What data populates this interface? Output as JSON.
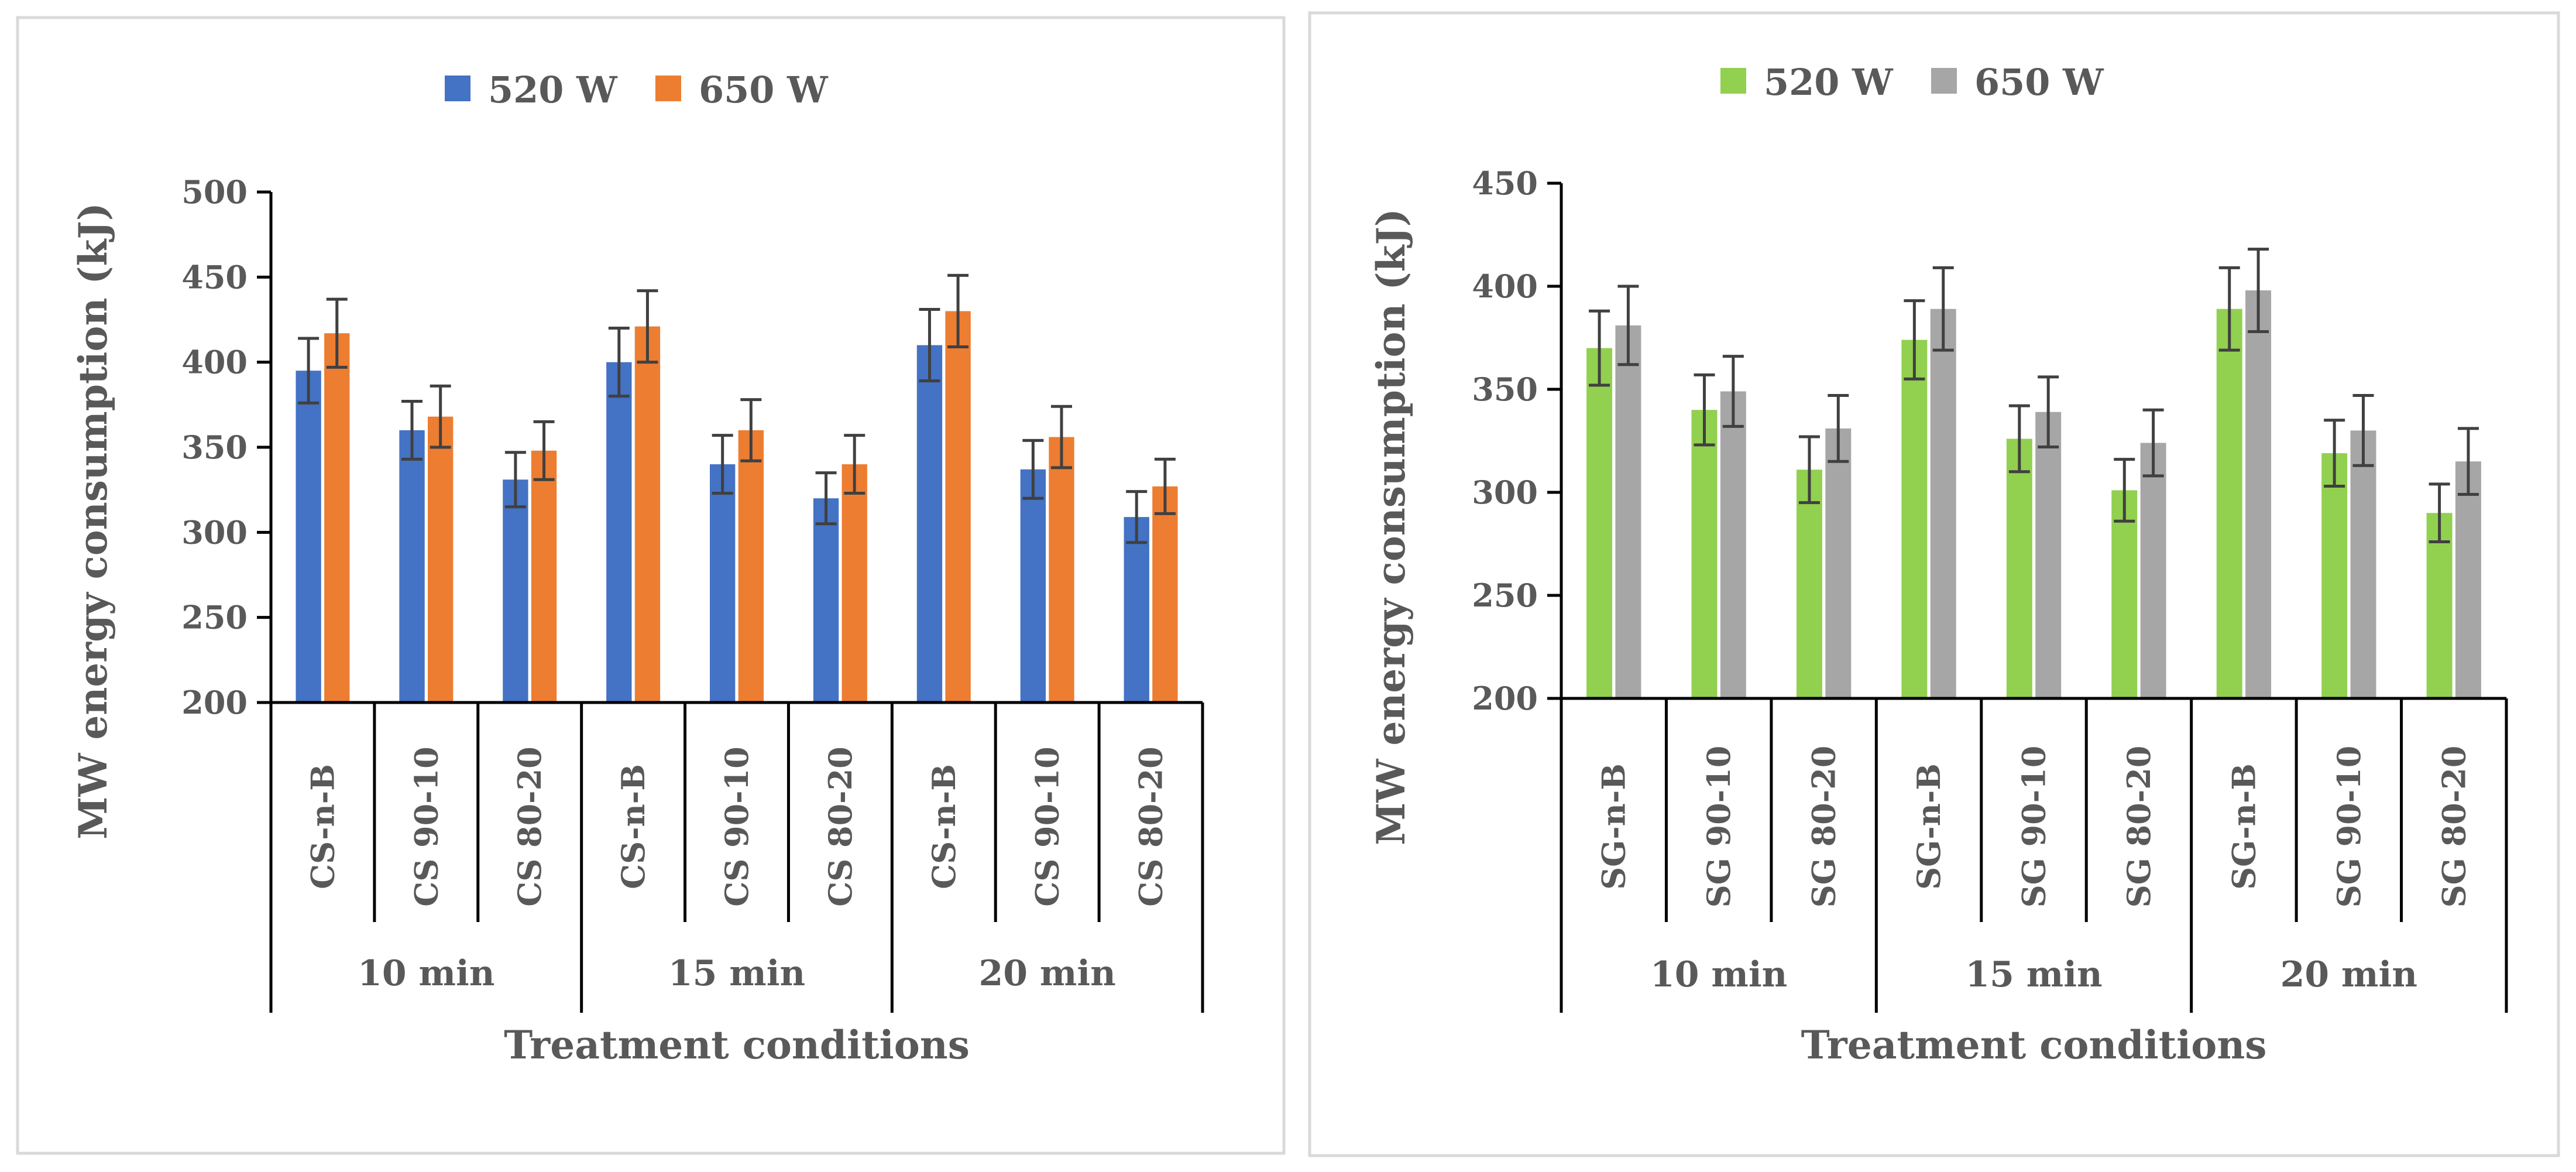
{
  "colors": {
    "panel_border": "#d9d9d9",
    "axis": "#000000",
    "text": "#595959",
    "error_bar": "#404040"
  },
  "chart_data": [
    {
      "type": "bar",
      "title": "",
      "xlabel": "Treatment conditions",
      "ylabel": "MW energy consumption (kJ)",
      "ylim": [
        200,
        500
      ],
      "ytick_step": 50,
      "yticks": [
        "200",
        "250",
        "300",
        "350",
        "400",
        "450",
        "500"
      ],
      "grid": false,
      "legend_position": "top-center",
      "categories": [
        "CS-n-B",
        "CS 90-10",
        "CS 80-20",
        "CS-n-B",
        "CS 90-10",
        "CS 80-20",
        "CS-n-B",
        "CS 90-10",
        "CS 80-20"
      ],
      "groups": [
        {
          "label": "10 min",
          "span": 3
        },
        {
          "label": "15 min",
          "span": 3
        },
        {
          "label": "20 min",
          "span": 3
        }
      ],
      "series": [
        {
          "name": "520 W",
          "color": "#4472c4",
          "values": [
            395,
            360,
            331,
            400,
            340,
            320,
            410,
            337,
            309
          ],
          "errors": [
            19,
            17,
            16,
            20,
            17,
            15,
            21,
            17,
            15
          ]
        },
        {
          "name": "650 W",
          "color": "#ed7d31",
          "values": [
            417,
            368,
            348,
            421,
            360,
            340,
            430,
            356,
            327
          ],
          "errors": [
            20,
            18,
            17,
            21,
            18,
            17,
            21,
            18,
            16
          ]
        }
      ]
    },
    {
      "type": "bar",
      "title": "",
      "xlabel": "Treatment conditions",
      "ylabel": "MW energy consumption (kJ)",
      "ylim": [
        200,
        450
      ],
      "ytick_step": 50,
      "yticks": [
        "200",
        "250",
        "300",
        "350",
        "400",
        "450"
      ],
      "grid": false,
      "legend_position": "top-center",
      "categories": [
        "SG-n-B",
        "SG 90-10",
        "SG 80-20",
        "SG-n-B",
        "SG 90-10",
        "SG 80-20",
        "SG-n-B",
        "SG 90-10",
        "SG 80-20"
      ],
      "groups": [
        {
          "label": "10 min",
          "span": 3
        },
        {
          "label": "15 min",
          "span": 3
        },
        {
          "label": "20 min",
          "span": 3
        }
      ],
      "series": [
        {
          "name": "520 W",
          "color": "#92d050",
          "values": [
            370,
            340,
            311,
            374,
            326,
            301,
            389,
            319,
            290
          ],
          "errors": [
            18,
            17,
            16,
            19,
            16,
            15,
            20,
            16,
            14
          ]
        },
        {
          "name": "650 W",
          "color": "#a6a6a6",
          "values": [
            381,
            349,
            331,
            389,
            339,
            324,
            398,
            330,
            315
          ],
          "errors": [
            19,
            17,
            16,
            20,
            17,
            16,
            20,
            17,
            16
          ]
        }
      ]
    }
  ]
}
